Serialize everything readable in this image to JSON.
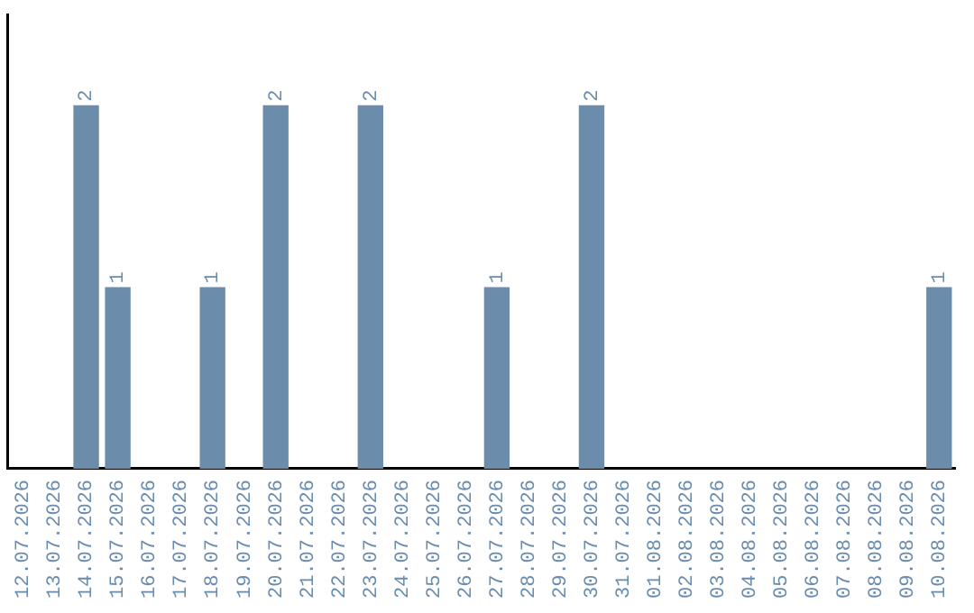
{
  "chart_data": {
    "type": "bar",
    "categories": [
      "12.07.2026",
      "13.07.2026",
      "14.07.2026",
      "15.07.2026",
      "16.07.2026",
      "17.07.2026",
      "18.07.2026",
      "19.07.2026",
      "20.07.2026",
      "21.07.2026",
      "22.07.2026",
      "23.07.2026",
      "24.07.2026",
      "25.07.2026",
      "26.07.2026",
      "27.07.2026",
      "28.07.2026",
      "29.07.2026",
      "30.07.2026",
      "31.07.2026",
      "01.08.2026",
      "02.08.2026",
      "03.08.2026",
      "04.08.2026",
      "05.08.2026",
      "06.08.2026",
      "07.08.2026",
      "08.08.2026",
      "09.08.2026",
      "10.08.2026"
    ],
    "values": [
      0,
      0,
      2,
      1,
      0,
      0,
      1,
      0,
      2,
      0,
      0,
      2,
      0,
      0,
      0,
      1,
      0,
      0,
      2,
      0,
      0,
      0,
      0,
      0,
      0,
      0,
      0,
      0,
      0,
      1
    ],
    "value_labels": [
      null,
      null,
      "2",
      "1",
      null,
      null,
      "1",
      null,
      "2",
      null,
      null,
      "2",
      null,
      null,
      null,
      "1",
      null,
      null,
      "2",
      null,
      null,
      null,
      null,
      null,
      null,
      null,
      null,
      null,
      null,
      "1"
    ],
    "color": "#6b8cab",
    "grid": false,
    "legend": false,
    "tick_labels": "x"
  }
}
